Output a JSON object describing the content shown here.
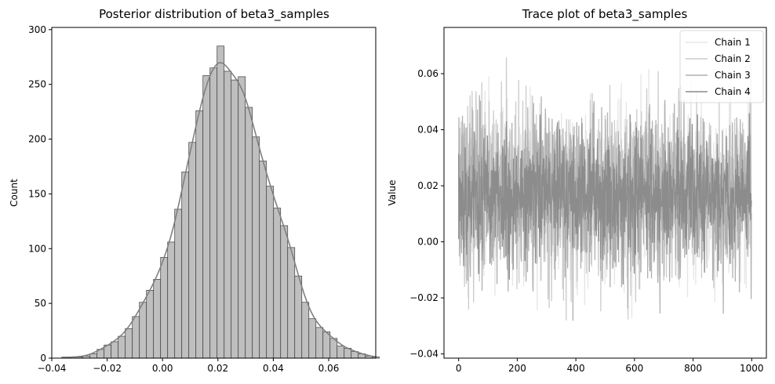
{
  "chart_data": [
    {
      "type": "histogram",
      "title": "Posterior distribution of beta3_samples",
      "xlabel": "",
      "ylabel": "Count",
      "xlim": [
        -0.04,
        0.077
      ],
      "ylim": [
        0,
        302
      ],
      "xticks": [
        "−0.04",
        "−0.02",
        "0.00",
        "0.02",
        "0.04",
        "0.06"
      ],
      "xtick_values": [
        -0.04,
        -0.02,
        0.0,
        0.02,
        0.04,
        0.06
      ],
      "yticks": [
        "0",
        "50",
        "100",
        "150",
        "200",
        "250",
        "300"
      ],
      "ytick_values": [
        0,
        50,
        100,
        150,
        200,
        250,
        300
      ],
      "bin_start": -0.0364,
      "bin_width": 0.00255,
      "counts": [
        1,
        1,
        1,
        2,
        4,
        8,
        12,
        15,
        20,
        27,
        38,
        51,
        62,
        72,
        92,
        106,
        136,
        170,
        197,
        226,
        258,
        265,
        285,
        262,
        254,
        257,
        229,
        202,
        180,
        157,
        137,
        121,
        101,
        75,
        51,
        36,
        28,
        24,
        18,
        11,
        9,
        6,
        4,
        2,
        1
      ],
      "kde": true,
      "bar_color": "#bfbfbf",
      "edge_color": "#3a3a3a",
      "kde_color": "#808080"
    },
    {
      "type": "line",
      "title": "Trace plot of beta3_samples",
      "xlabel": "",
      "ylabel": "Value",
      "xlim": [
        -50,
        1050
      ],
      "ylim": [
        -0.0415,
        0.0765
      ],
      "xticks": [
        "0",
        "200",
        "400",
        "600",
        "800",
        "1000"
      ],
      "xtick_values": [
        0,
        200,
        400,
        600,
        800,
        1000
      ],
      "yticks": [
        "−0.04",
        "−0.02",
        "0.00",
        "0.02",
        "0.04",
        "0.06"
      ],
      "ytick_values": [
        -0.04,
        -0.02,
        0.0,
        0.02,
        0.04,
        0.06
      ],
      "n_samples": 1000,
      "legend_position": "top-right",
      "series": [
        {
          "name": "Chain 1",
          "color": "#e6e6e6",
          "mean": 0.018,
          "sd": 0.015,
          "seed": 11
        },
        {
          "name": "Chain 2",
          "color": "#cccccc",
          "mean": 0.018,
          "sd": 0.0155,
          "seed": 23
        },
        {
          "name": "Chain 3",
          "color": "#b0b0b0",
          "mean": 0.017,
          "sd": 0.0145,
          "seed": 37
        },
        {
          "name": "Chain 4",
          "color": "#8c8c8c",
          "mean": 0.0165,
          "sd": 0.0105,
          "seed": 53
        }
      ]
    }
  ]
}
